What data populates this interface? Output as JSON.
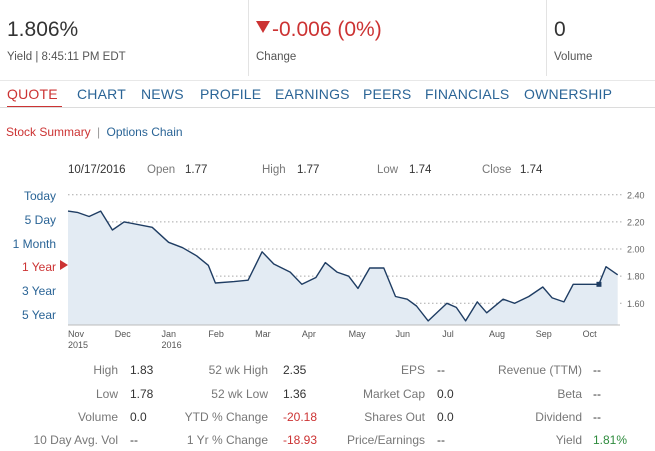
{
  "quote": {
    "price": "1.806%",
    "price_sub": "Yield | 8:45:11 PM EDT",
    "change": "-0.006 (0%)",
    "change_sub": "Change",
    "volume": "0",
    "volume_sub": "Volume"
  },
  "tabs": [
    "QUOTE",
    "CHART",
    "NEWS",
    "PROFILE",
    "EARNINGS",
    "PEERS",
    "FINANCIALS",
    "OWNERSHIP"
  ],
  "subtabs": {
    "summary": "Stock Summary",
    "separator": "|",
    "options": "Options Chain"
  },
  "ohlc": {
    "date": "10/17/2016",
    "open_label": "Open",
    "open": "1.77",
    "high_label": "High",
    "high": "1.77",
    "low_label": "Low",
    "low": "1.74",
    "close_label": "Close",
    "close": "1.74"
  },
  "ranges": [
    "Today",
    "5 Day",
    "1 Month",
    "1 Year",
    "3 Year",
    "5 Year"
  ],
  "active_range": "1 Year",
  "colors": {
    "accent": "#cc3333",
    "link": "#2a6496",
    "line": "#1f3d63",
    "fill": "#e3ebf3",
    "positive": "#2e8b3d"
  },
  "chart_data": {
    "type": "area",
    "y_ticks": [
      "2.40",
      "2.20",
      "2.00",
      "1.80",
      "1.60"
    ],
    "y_tick_values": [
      2.4,
      2.2,
      2.0,
      1.8,
      1.6
    ],
    "ylim": [
      1.44,
      2.45
    ],
    "x_tick_labels": [
      {
        "label": "Nov",
        "sub": "2015",
        "t": 0
      },
      {
        "label": "Dec",
        "sub": "",
        "t": 1
      },
      {
        "label": "Jan",
        "sub": "2016",
        "t": 2
      },
      {
        "label": "Feb",
        "sub": "",
        "t": 3
      },
      {
        "label": "Mar",
        "sub": "",
        "t": 4
      },
      {
        "label": "Apr",
        "sub": "",
        "t": 5
      },
      {
        "label": "May",
        "sub": "",
        "t": 6
      },
      {
        "label": "Jun",
        "sub": "",
        "t": 7
      },
      {
        "label": "Jul",
        "sub": "",
        "t": 8
      },
      {
        "label": "Aug",
        "sub": "",
        "t": 9
      },
      {
        "label": "Sep",
        "sub": "",
        "t": 10
      },
      {
        "label": "Oct",
        "sub": "",
        "t": 11
      }
    ],
    "t_range": [
      0,
      11.8
    ],
    "points": [
      [
        0.0,
        2.28
      ],
      [
        0.2,
        2.27
      ],
      [
        0.45,
        2.24
      ],
      [
        0.7,
        2.28
      ],
      [
        0.95,
        2.14
      ],
      [
        1.2,
        2.2
      ],
      [
        1.8,
        2.16
      ],
      [
        2.15,
        2.05
      ],
      [
        2.45,
        2.01
      ],
      [
        2.75,
        1.95
      ],
      [
        3.0,
        1.88
      ],
      [
        3.15,
        1.75
      ],
      [
        3.55,
        1.76
      ],
      [
        3.85,
        1.77
      ],
      [
        4.15,
        1.98
      ],
      [
        4.4,
        1.89
      ],
      [
        4.75,
        1.83
      ],
      [
        5.0,
        1.74
      ],
      [
        5.3,
        1.79
      ],
      [
        5.5,
        1.9
      ],
      [
        5.75,
        1.83
      ],
      [
        6.0,
        1.8
      ],
      [
        6.2,
        1.71
      ],
      [
        6.45,
        1.86
      ],
      [
        6.75,
        1.86
      ],
      [
        7.0,
        1.65
      ],
      [
        7.25,
        1.63
      ],
      [
        7.45,
        1.58
      ],
      [
        7.7,
        1.47
      ],
      [
        8.1,
        1.6
      ],
      [
        8.3,
        1.57
      ],
      [
        8.5,
        1.47
      ],
      [
        8.75,
        1.61
      ],
      [
        8.95,
        1.53
      ],
      [
        9.3,
        1.63
      ],
      [
        9.55,
        1.6
      ],
      [
        9.85,
        1.65
      ],
      [
        10.15,
        1.72
      ],
      [
        10.35,
        1.64
      ],
      [
        10.6,
        1.61
      ],
      [
        10.8,
        1.74
      ],
      [
        11.15,
        1.74
      ],
      [
        11.35,
        1.74
      ],
      [
        11.5,
        1.87
      ],
      [
        11.75,
        1.81
      ]
    ],
    "marker_index": 42,
    "grid": "dotted-horizontal"
  },
  "stats": {
    "col1": [
      {
        "label": "High",
        "value": "1.83",
        "tone": ""
      },
      {
        "label": "Low",
        "value": "1.78",
        "tone": ""
      },
      {
        "label": "Volume",
        "value": "0.0",
        "tone": ""
      },
      {
        "label": "10 Day Avg. Vol",
        "value": "--",
        "tone": ""
      }
    ],
    "col2": [
      {
        "label": "52 wk High",
        "value": "2.35",
        "tone": ""
      },
      {
        "label": "52 wk Low",
        "value": "1.36",
        "tone": ""
      },
      {
        "label": "YTD % Change",
        "value": "-20.18",
        "tone": "neg"
      },
      {
        "label": "1 Yr % Change",
        "value": "-18.93",
        "tone": "neg"
      }
    ],
    "col3": [
      {
        "label": "EPS",
        "value": "--",
        "tone": ""
      },
      {
        "label": "Market Cap",
        "value": "0.0",
        "tone": ""
      },
      {
        "label": "Shares Out",
        "value": "0.0",
        "tone": ""
      },
      {
        "label": "Price/Earnings",
        "value": "--",
        "tone": ""
      }
    ],
    "col4": [
      {
        "label": "Revenue (TTM)",
        "value": "--",
        "tone": ""
      },
      {
        "label": "Beta",
        "value": "--",
        "tone": ""
      },
      {
        "label": "Dividend",
        "value": "--",
        "tone": ""
      },
      {
        "label": "Yield",
        "value": "1.81%",
        "tone": "pos"
      }
    ]
  }
}
